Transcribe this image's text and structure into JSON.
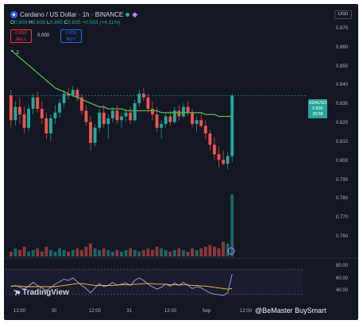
{
  "header": {
    "title": "Cardano / US Dollar · 1h · BINANCE",
    "currency_button": "USD"
  },
  "ohlc": {
    "o_label": "O",
    "o": "0.803",
    "h_label": "H",
    "h": "0.836",
    "l_label": "L",
    "l": "0.800",
    "c_label": "C",
    "c": "0.835",
    "change": "+0.033 (+4.11%)"
  },
  "trade": {
    "sell_price": "0.835",
    "sell_label": "SELL",
    "spread": "0.000",
    "buy_price": "0.835",
    "buy_label": "BUY"
  },
  "indicators_label": "2",
  "price_axis": [
    "0.870",
    "0.860",
    "0.850",
    "0.840",
    "0.830",
    "0.820",
    "0.810",
    "0.800",
    "0.790",
    "0.780",
    "0.770",
    "0.760"
  ],
  "price_tag": {
    "symbol": "ADAUSD",
    "price": "0.835",
    "countdown": "28:58"
  },
  "time_axis": [
    "12:00",
    "30",
    "12:00",
    "31",
    "12:00",
    "Sep",
    "12:00"
  ],
  "rsi_axis": [
    "80.00",
    "60.00",
    "40.00"
  ],
  "branding": "TradingView",
  "watermark": "@BeMaster BuySmart",
  "colors": {
    "background": "#131722",
    "up": "#26a69a",
    "down": "#ef5350",
    "ma": "#4caf50",
    "rsi": "#b39ddb"
  },
  "chart_data": {
    "type": "candlestick",
    "symbol": "ADAUSD",
    "interval": "1h",
    "ylim": [
      0.755,
      0.875
    ],
    "candles": [
      [
        0.835,
        0.838,
        0.818,
        0.822
      ],
      [
        0.822,
        0.832,
        0.819,
        0.829
      ],
      [
        0.829,
        0.834,
        0.82,
        0.825
      ],
      [
        0.825,
        0.829,
        0.815,
        0.818
      ],
      [
        0.818,
        0.83,
        0.816,
        0.828
      ],
      [
        0.828,
        0.836,
        0.825,
        0.834
      ],
      [
        0.834,
        0.837,
        0.826,
        0.828
      ],
      [
        0.828,
        0.832,
        0.82,
        0.823
      ],
      [
        0.823,
        0.826,
        0.812,
        0.815
      ],
      [
        0.815,
        0.825,
        0.811,
        0.823
      ],
      [
        0.823,
        0.83,
        0.82,
        0.826
      ],
      [
        0.826,
        0.833,
        0.823,
        0.831
      ],
      [
        0.831,
        0.838,
        0.829,
        0.836
      ],
      [
        0.836,
        0.839,
        0.833,
        0.835
      ],
      [
        0.835,
        0.84,
        0.834,
        0.838
      ],
      [
        0.838,
        0.839,
        0.832,
        0.834
      ],
      [
        0.834,
        0.836,
        0.825,
        0.827
      ],
      [
        0.827,
        0.83,
        0.819,
        0.821
      ],
      [
        0.821,
        0.824,
        0.806,
        0.81
      ],
      [
        0.81,
        0.82,
        0.808,
        0.818
      ],
      [
        0.818,
        0.828,
        0.816,
        0.826
      ],
      [
        0.826,
        0.83,
        0.818,
        0.82
      ],
      [
        0.82,
        0.825,
        0.812,
        0.823
      ],
      [
        0.823,
        0.829,
        0.821,
        0.827
      ],
      [
        0.827,
        0.83,
        0.82,
        0.822
      ],
      [
        0.822,
        0.826,
        0.818,
        0.824
      ],
      [
        0.824,
        0.828,
        0.821,
        0.826
      ],
      [
        0.826,
        0.829,
        0.82,
        0.822
      ],
      [
        0.822,
        0.833,
        0.821,
        0.831
      ],
      [
        0.831,
        0.838,
        0.829,
        0.836
      ],
      [
        0.836,
        0.839,
        0.832,
        0.834
      ],
      [
        0.834,
        0.836,
        0.826,
        0.828
      ],
      [
        0.828,
        0.832,
        0.822,
        0.825
      ],
      [
        0.825,
        0.829,
        0.816,
        0.818
      ],
      [
        0.818,
        0.822,
        0.812,
        0.82
      ],
      [
        0.82,
        0.826,
        0.818,
        0.824
      ],
      [
        0.824,
        0.827,
        0.819,
        0.821
      ],
      [
        0.821,
        0.829,
        0.82,
        0.827
      ],
      [
        0.827,
        0.83,
        0.822,
        0.824
      ],
      [
        0.824,
        0.831,
        0.823,
        0.829
      ],
      [
        0.829,
        0.832,
        0.824,
        0.826
      ],
      [
        0.826,
        0.828,
        0.818,
        0.82
      ],
      [
        0.82,
        0.824,
        0.816,
        0.822
      ],
      [
        0.822,
        0.826,
        0.818,
        0.819
      ],
      [
        0.819,
        0.822,
        0.812,
        0.815
      ],
      [
        0.815,
        0.817,
        0.806,
        0.809
      ],
      [
        0.809,
        0.813,
        0.801,
        0.804
      ],
      [
        0.804,
        0.808,
        0.797,
        0.801
      ],
      [
        0.801,
        0.806,
        0.798,
        0.799
      ],
      [
        0.799,
        0.805,
        0.796,
        0.803
      ],
      [
        0.803,
        0.836,
        0.8,
        0.835
      ]
    ],
    "ma": [
      0.859,
      0.857,
      0.855,
      0.853,
      0.851,
      0.849,
      0.847,
      0.845,
      0.843,
      0.841,
      0.839,
      0.838,
      0.837,
      0.836,
      0.835,
      0.834,
      0.833,
      0.832,
      0.831,
      0.83,
      0.829,
      0.829,
      0.828,
      0.828,
      0.828,
      0.828,
      0.827,
      0.827,
      0.827,
      0.827,
      0.827,
      0.827,
      0.827,
      0.827,
      0.826,
      0.826,
      0.826,
      0.826,
      0.826,
      0.826,
      0.826,
      0.826,
      0.826,
      0.826,
      0.825,
      0.825,
      0.825,
      0.824,
      0.824,
      0.824,
      0.824
    ],
    "volume": [
      3,
      5,
      4,
      6,
      3,
      4,
      5,
      3,
      6,
      4,
      3,
      5,
      4,
      3,
      4,
      5,
      4,
      6,
      8,
      5,
      4,
      5,
      4,
      3,
      4,
      3,
      4,
      5,
      4,
      3,
      4,
      5,
      4,
      6,
      5,
      4,
      3,
      4,
      5,
      4,
      3,
      5,
      4,
      5,
      6,
      7,
      6,
      5,
      9,
      8,
      38
    ],
    "rsi_ylim": [
      20,
      90
    ],
    "rsi": [
      48,
      50,
      47,
      44,
      49,
      55,
      50,
      46,
      42,
      47,
      52,
      56,
      60,
      58,
      62,
      56,
      50,
      45,
      38,
      46,
      53,
      48,
      50,
      55,
      50,
      52,
      54,
      50,
      58,
      62,
      58,
      52,
      48,
      44,
      47,
      52,
      49,
      54,
      50,
      55,
      50,
      45,
      48,
      46,
      42,
      38,
      36,
      35,
      34,
      38,
      68
    ],
    "rsi_ma": [
      49,
      49,
      49,
      48,
      48,
      48,
      48,
      48,
      48,
      48,
      48,
      49,
      50,
      51,
      52,
      53,
      53,
      52,
      51,
      50,
      50,
      50,
      50,
      50,
      51,
      51,
      51,
      51,
      52,
      52,
      53,
      53,
      53,
      52,
      52,
      52,
      51,
      51,
      51,
      51,
      51,
      50,
      50,
      49,
      49,
      48,
      47,
      46,
      45,
      44,
      45
    ]
  }
}
